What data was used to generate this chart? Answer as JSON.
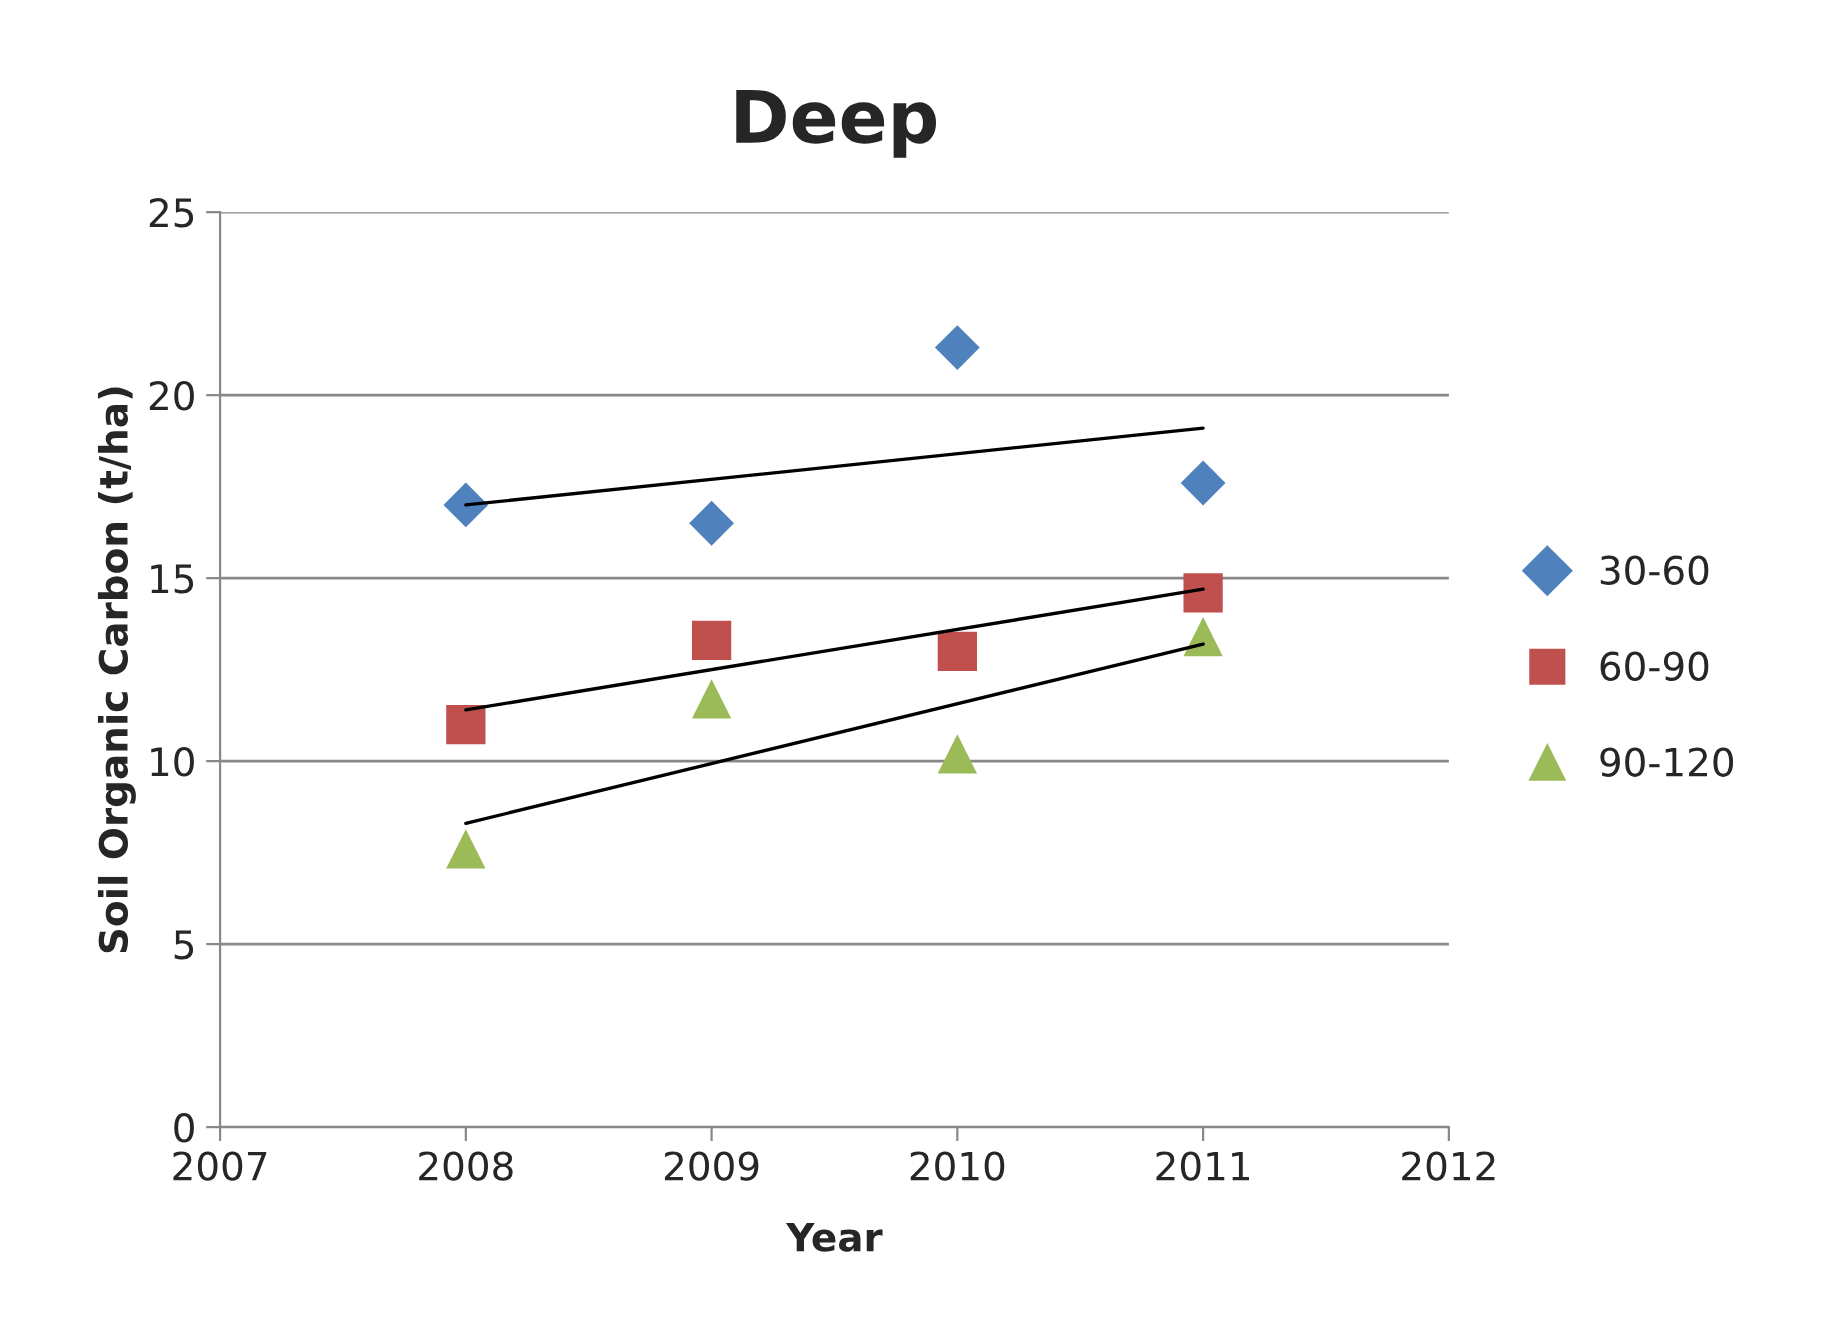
{
  "chart_data": {
    "type": "scatter",
    "title": "Deep",
    "xlabel": "Year",
    "ylabel": "Soil Organic Carbon (t/ha)",
    "xlim": [
      2007,
      2012
    ],
    "xticks": [
      2007,
      2008,
      2009,
      2010,
      2011,
      2012
    ],
    "ylim": [
      0,
      25
    ],
    "yticks": [
      0,
      5,
      10,
      15,
      20,
      25
    ],
    "grid": "y",
    "legend": "right",
    "series": [
      {
        "name": "30-60",
        "color": "#4f81bd",
        "marker": "diamond",
        "x": [
          2008,
          2009,
          2010,
          2011
        ],
        "values": [
          17.0,
          16.5,
          21.3,
          17.6
        ]
      },
      {
        "name": "60-90",
        "color": "#c0504d",
        "marker": "square",
        "x": [
          2008,
          2009,
          2010,
          2011
        ],
        "values": [
          11.0,
          13.3,
          13.0,
          14.6
        ]
      },
      {
        "name": "90-120",
        "color": "#9bbb59",
        "marker": "triangle",
        "x": [
          2008,
          2009,
          2010,
          2011
        ],
        "values": [
          7.6,
          11.7,
          10.2,
          13.4
        ]
      },
      {
        "type": "line",
        "color": "#000000",
        "x": [
          2008,
          2011
        ],
        "values": [
          17.0,
          19.1
        ]
      },
      {
        "type": "line",
        "color": "#000000",
        "x": [
          2008,
          2011
        ],
        "values": [
          11.4,
          14.7
        ]
      },
      {
        "type": "line",
        "color": "#000000",
        "x": [
          2008,
          2011
        ],
        "values": [
          8.3,
          13.2
        ]
      }
    ]
  }
}
